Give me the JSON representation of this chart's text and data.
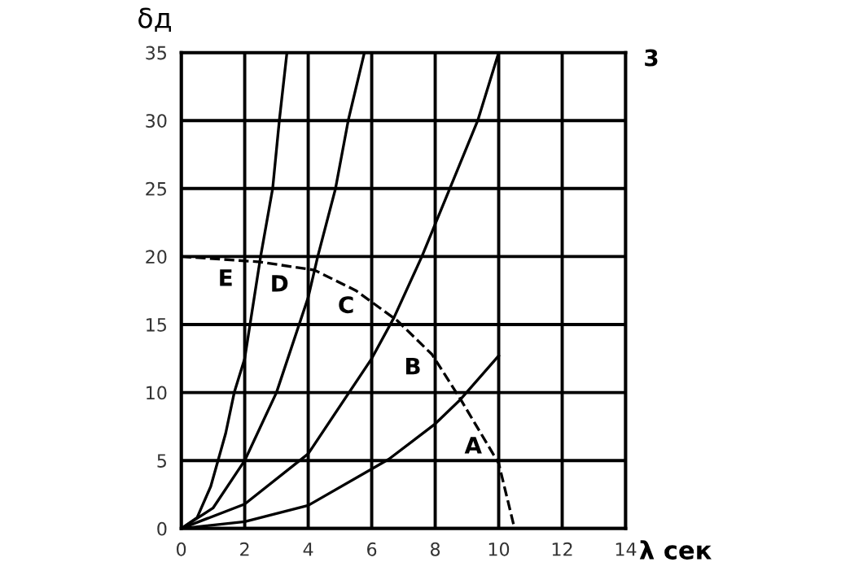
{
  "chart_data": {
    "type": "line",
    "xlabel": "λ сек",
    "ylabel": "δд",
    "xlim": [
      0,
      14
    ],
    "ylim": [
      0,
      35
    ],
    "xticks": [
      0,
      2,
      4,
      6,
      8,
      10,
      12,
      14
    ],
    "yticks": [
      0,
      5,
      10,
      15,
      20,
      25,
      30,
      35
    ],
    "grid": true,
    "line_style": "solid",
    "marker": "none",
    "series": [
      {
        "color": "#000000",
        "x": [
          0,
          0.5,
          0.93,
          1.4,
          1.67,
          2,
          2.5,
          2.88,
          3.09,
          3.33
        ],
        "values": [
          0,
          0.8,
          3.1,
          7,
          10,
          12.5,
          20,
          25,
          30,
          35
        ]
      },
      {
        "color": "#000000",
        "x": [
          0,
          1,
          2,
          3,
          4,
          4.3,
          4.86,
          5.26,
          5.77
        ],
        "values": [
          0,
          1.5,
          5,
          10,
          17,
          20,
          25,
          30,
          35
        ]
      },
      {
        "color": "#000000",
        "x": [
          0,
          2,
          4,
          6,
          6.7,
          7.58,
          8.46,
          9.34,
          10
        ],
        "values": [
          0,
          1.8,
          5.5,
          12.5,
          15.5,
          20,
          25,
          30,
          35
        ]
      },
      {
        "color": "#000000",
        "x": [
          0,
          2,
          4,
          6.54,
          8,
          8.8,
          10
        ],
        "values": [
          0,
          0.5,
          1.7,
          5.1,
          7.7,
          9.5,
          12.7
        ]
      },
      {
        "color": "#000000",
        "line_style": "dashed",
        "x": [
          0,
          2.5,
          4.2,
          5.5,
          6.8,
          7.9,
          8.8,
          10,
          10.5
        ],
        "values": [
          20,
          19.6,
          19,
          17.5,
          15.3,
          12.8,
          9.5,
          4.8,
          0
        ]
      }
    ],
    "annotations": [
      "E",
      "D",
      "C",
      "B",
      "A",
      "3"
    ]
  }
}
